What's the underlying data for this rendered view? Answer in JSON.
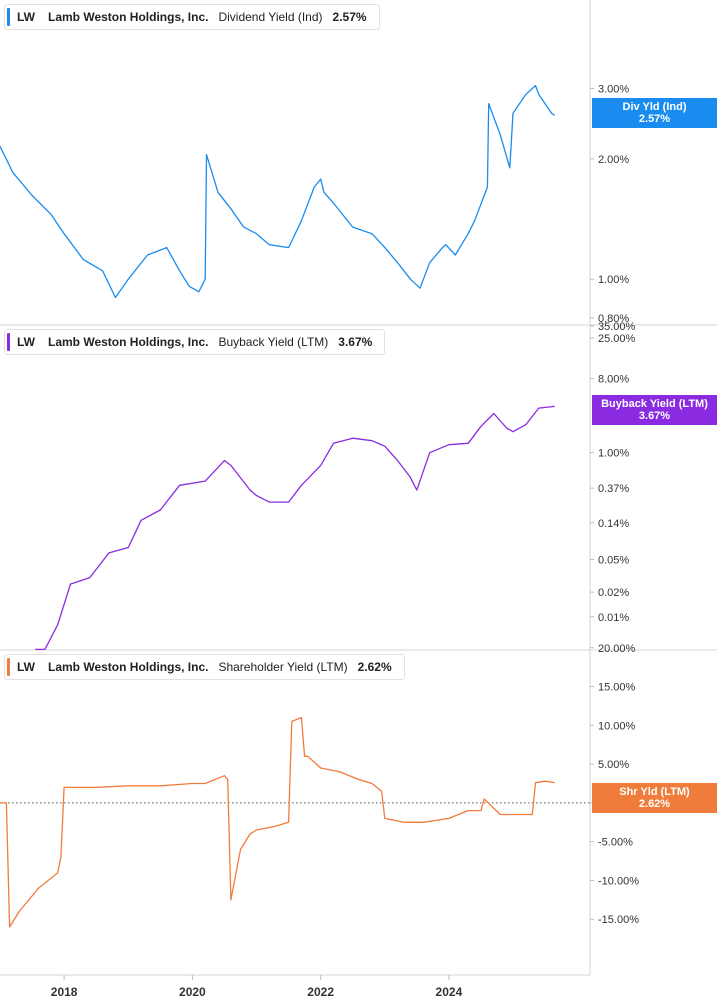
{
  "chart_data": [
    {
      "type": "line",
      "scale": "log",
      "legend": {
        "ticker": "LW",
        "company": "Lamb Weston Holdings, Inc.",
        "metric": "Dividend Yield (Ind)",
        "value": "2.57%"
      },
      "tag": {
        "label": "Div Yld (Ind)",
        "value": "2.57%"
      },
      "color": "#1a8cf0",
      "ylim": [
        0.8,
        4.2
      ],
      "ticks": [
        {
          "v": 3.0,
          "label": "3.00%"
        },
        {
          "v": 2.0,
          "label": "2.00%"
        },
        {
          "v": 1.0,
          "label": "1.00%"
        },
        {
          "v": 0.8,
          "label": "0.80%"
        }
      ],
      "series": [
        {
          "x": [
            2017.0,
            2017.2,
            2017.5,
            2017.8,
            2018.0,
            2018.3,
            2018.6,
            2018.8,
            2019.0,
            2019.3,
            2019.6,
            2019.8,
            2019.95,
            2020.1,
            2020.2,
            2020.22,
            2020.4,
            2020.6,
            2020.8,
            2021.0,
            2021.2,
            2021.5,
            2021.7,
            2021.9,
            2022.0,
            2022.05,
            2022.2,
            2022.5,
            2022.8,
            2023.0,
            2023.2,
            2023.4,
            2023.55,
            2023.7,
            2023.9,
            2023.95,
            2024.1,
            2024.3,
            2024.4,
            2024.6,
            2024.62,
            2024.8,
            2024.95,
            2025.0,
            2025.2,
            2025.35,
            2025.4,
            2025.6,
            2025.65
          ],
          "y": [
            2.15,
            1.85,
            1.62,
            1.45,
            1.3,
            1.12,
            1.05,
            0.9,
            1.0,
            1.15,
            1.2,
            1.05,
            0.96,
            0.93,
            1.0,
            2.05,
            1.65,
            1.5,
            1.35,
            1.3,
            1.22,
            1.2,
            1.4,
            1.7,
            1.78,
            1.65,
            1.55,
            1.35,
            1.3,
            1.2,
            1.1,
            1.0,
            0.95,
            1.1,
            1.2,
            1.22,
            1.15,
            1.3,
            1.4,
            1.7,
            2.75,
            2.3,
            1.9,
            2.6,
            2.9,
            3.05,
            2.9,
            2.6,
            2.57
          ]
        }
      ]
    },
    {
      "type": "line",
      "scale": "log",
      "legend": {
        "ticker": "LW",
        "company": "Lamb Weston Holdings, Inc.",
        "metric": "Buyback Yield (LTM)",
        "value": "3.67%"
      },
      "tag": {
        "label": "Buyback Yield (LTM)",
        "value": "3.67%"
      },
      "color": "#8a2be2",
      "ylim": [
        0.006,
        35.0
      ],
      "ticks": [
        {
          "v": 35.0,
          "label": "35.00%"
        },
        {
          "v": 25.0,
          "label": "25.00%"
        },
        {
          "v": 8.0,
          "label": "8.00%"
        },
        {
          "v": 1.0,
          "label": "1.00%"
        },
        {
          "v": 0.37,
          "label": "0.37%"
        },
        {
          "v": 0.14,
          "label": "0.14%"
        },
        {
          "v": 0.05,
          "label": "0.05%"
        },
        {
          "v": 0.02,
          "label": "0.02%"
        },
        {
          "v": 0.01,
          "label": "0.01%"
        }
      ],
      "series": [
        {
          "x": [
            2017.55,
            2017.7,
            2017.9,
            2018.1,
            2018.4,
            2018.7,
            2019.0,
            2019.2,
            2019.5,
            2019.8,
            2020.2,
            2020.5,
            2020.6,
            2020.9,
            2021.0,
            2021.2,
            2021.5,
            2021.7,
            2022.0,
            2022.2,
            2022.5,
            2022.8,
            2023.0,
            2023.2,
            2023.4,
            2023.5,
            2023.7,
            2024.0,
            2024.3,
            2024.5,
            2024.7,
            2024.9,
            2025.0,
            2025.2,
            2025.4,
            2025.65
          ],
          "y": [
            0.004,
            0.004,
            0.008,
            0.025,
            0.03,
            0.06,
            0.07,
            0.15,
            0.2,
            0.4,
            0.45,
            0.8,
            0.7,
            0.35,
            0.3,
            0.25,
            0.25,
            0.4,
            0.7,
            1.3,
            1.5,
            1.4,
            1.2,
            0.8,
            0.5,
            0.35,
            1.0,
            1.25,
            1.3,
            2.1,
            3.0,
            2.0,
            1.8,
            2.2,
            3.5,
            3.67
          ]
        }
      ]
    },
    {
      "type": "line",
      "scale": "linear",
      "legend": {
        "ticker": "LW",
        "company": "Lamb Weston Holdings, Inc.",
        "metric": "Shareholder Yield (LTM)",
        "value": "2.62%"
      },
      "tag": {
        "label": "Shr Yld (LTM)",
        "value": "2.62%"
      },
      "color": "#f07c3c",
      "ylim": [
        -20.0,
        21.0
      ],
      "ticks": [
        {
          "v": 20,
          "label": "20.00%"
        },
        {
          "v": 15,
          "label": "15.00%"
        },
        {
          "v": 10,
          "label": "10.00%"
        },
        {
          "v": 5,
          "label": "5.00%"
        },
        {
          "v": 0,
          "label": "0.00%"
        },
        {
          "v": -5,
          "label": "-5.00%"
        },
        {
          "v": -10,
          "label": "-10.00%"
        },
        {
          "v": -15,
          "label": "-15.00%"
        }
      ],
      "series": [
        {
          "x": [
            2017.0,
            2017.1,
            2017.15,
            2017.3,
            2017.6,
            2017.9,
            2017.95,
            2018.0,
            2018.5,
            2019.0,
            2019.5,
            2020.0,
            2020.2,
            2020.5,
            2020.55,
            2020.6,
            2020.75,
            2020.9,
            2021.0,
            2021.3,
            2021.5,
            2021.55,
            2021.7,
            2021.75,
            2021.8,
            2022.0,
            2022.3,
            2022.6,
            2022.8,
            2022.95,
            2023.0,
            2023.3,
            2023.6,
            2024.0,
            2024.3,
            2024.5,
            2024.55,
            2024.8,
            2025.0,
            2025.3,
            2025.35,
            2025.5,
            2025.65
          ],
          "y": [
            0.0,
            0.0,
            -16.0,
            -14.0,
            -11.0,
            -9.0,
            -7.0,
            2.0,
            2.0,
            2.2,
            2.2,
            2.5,
            2.5,
            3.5,
            3.0,
            -12.5,
            -6.0,
            -4.0,
            -3.5,
            -3.0,
            -2.5,
            10.5,
            11.0,
            6.0,
            6.0,
            4.5,
            4.0,
            3.0,
            2.5,
            1.5,
            -2.0,
            -2.5,
            -2.5,
            -2.0,
            -1.0,
            -1.0,
            0.5,
            -1.5,
            -1.5,
            -1.5,
            2.6,
            2.8,
            2.62
          ]
        }
      ]
    }
  ],
  "x_axis": {
    "min": 2017.0,
    "max": 2026.2,
    "ticks": [
      {
        "v": 2018,
        "label": "2018"
      },
      {
        "v": 2020,
        "label": "2020"
      },
      {
        "v": 2022,
        "label": "2022"
      },
      {
        "v": 2024,
        "label": "2024"
      }
    ]
  }
}
